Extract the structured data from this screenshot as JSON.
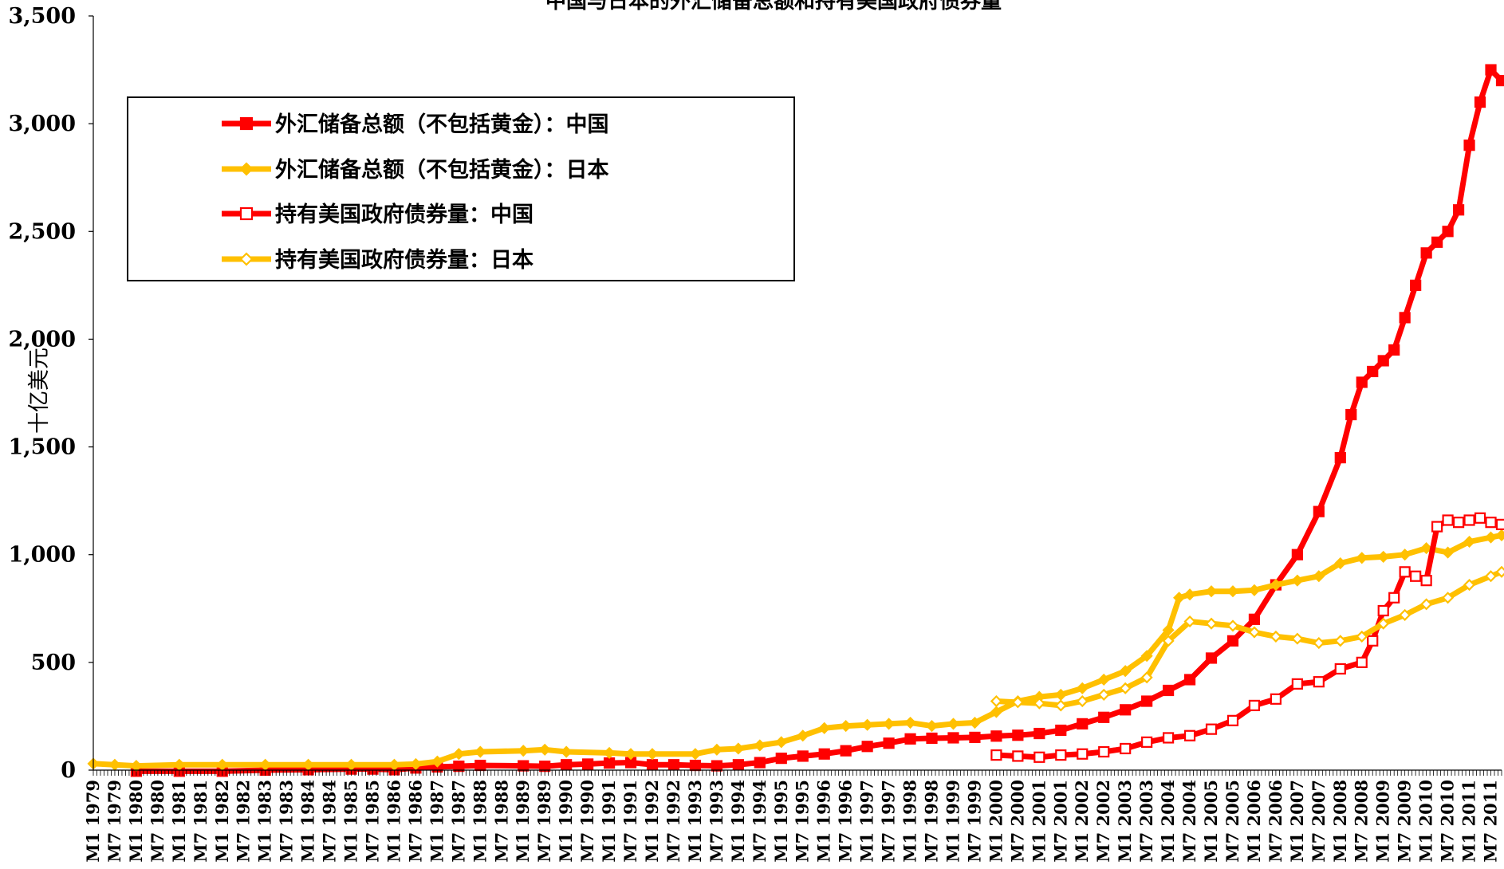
{
  "chart_data": {
    "type": "line",
    "title": "中国与日本的外汇储备总额和持有美国政府债券量",
    "xlabel": "",
    "ylabel": "十亿美元",
    "ylim": [
      0,
      3500
    ],
    "yticks": [
      "0",
      "500",
      "1,000",
      "1,500",
      "2,000",
      "2,500",
      "3,000",
      "3,500"
    ],
    "ytick_values": [
      0,
      500,
      1000,
      1500,
      2000,
      2500,
      3000,
      3500
    ],
    "x_tick_labels": [
      "M1 1979",
      "M7 1979",
      "M1 1980",
      "M7 1980",
      "M1 1981",
      "M7 1981",
      "M1 1982",
      "M7 1982",
      "M1 1983",
      "M7 1983",
      "M1 1984",
      "M7 1984",
      "M1 1985",
      "M7 1985",
      "M1 1986",
      "M7 1986",
      "M1 1987",
      "M7 1987",
      "M1 1988",
      "M7 1988",
      "M1 1989",
      "M7 1989",
      "M1 1990",
      "M7 1990",
      "M1 1991",
      "M7 1991",
      "M1 1992",
      "M7 1992",
      "M1 1993",
      "M7 1993",
      "M1 1994",
      "M7 1994",
      "M1 1995",
      "M7 1995",
      "M1 1996",
      "M7 1996",
      "M1 1997",
      "M7 1997",
      "M1 1998",
      "M7 1998",
      "M1 1999",
      "M7 1999",
      "M1 2000",
      "M7 2000",
      "M1 2001",
      "M7 2001",
      "M1 2002",
      "M7 2002",
      "M1 2003",
      "M7 2003",
      "M1 2004",
      "M7 2004",
      "M1 2005",
      "M7 2005",
      "M1 2006",
      "M7 2006",
      "M1 2007",
      "M7 2007",
      "M1 2008",
      "M7 2008",
      "M1 2009",
      "M7 2009",
      "M1 2010",
      "M7 2010",
      "M1 2011",
      "M7 2011"
    ],
    "x_range": [
      1979.0,
      2011.75
    ],
    "legend_position": "top-left",
    "grid": false,
    "series": [
      {
        "name": "外汇储备总额（不包括黄金）：中国",
        "color": "#ff0000",
        "marker": "filled-square",
        "x": [
          1980.0,
          1981.0,
          1982.0,
          1983.0,
          1984.0,
          1985.0,
          1985.5,
          1986.0,
          1986.5,
          1987.0,
          1987.5,
          1988.0,
          1989.0,
          1989.5,
          1990.0,
          1990.5,
          1991.0,
          1991.5,
          1992.0,
          1992.5,
          1993.0,
          1993.5,
          1994.0,
          1994.5,
          1995.0,
          1995.5,
          1996.0,
          1996.5,
          1997.0,
          1997.5,
          1998.0,
          1998.5,
          1999.0,
          1999.5,
          2000.0,
          2000.5,
          2001.0,
          2001.5,
          2002.0,
          2002.5,
          2003.0,
          2003.5,
          2004.0,
          2004.5,
          2005.0,
          2005.5,
          2006.0,
          2006.5,
          2007.0,
          2007.5,
          2008.0,
          2008.25,
          2008.5,
          2008.75,
          2009.0,
          2009.25,
          2009.5,
          2009.75,
          2010.0,
          2010.25,
          2010.5,
          2010.75,
          2011.0,
          2011.25,
          2011.5,
          2011.75
        ],
        "y": [
          -5,
          -5,
          -5,
          0,
          2,
          5,
          5,
          2,
          10,
          15,
          18,
          22,
          20,
          18,
          25,
          28,
          33,
          35,
          25,
          25,
          22,
          20,
          25,
          35,
          55,
          65,
          75,
          90,
          110,
          125,
          145,
          148,
          150,
          152,
          158,
          162,
          170,
          185,
          215,
          245,
          280,
          320,
          370,
          420,
          520,
          600,
          700,
          860,
          1000,
          1200,
          1450,
          1650,
          1800,
          1850,
          1900,
          1950,
          2100,
          2250,
          2400,
          2450,
          2500,
          2600,
          2900,
          3100,
          3250,
          3200
        ]
      },
      {
        "name": "外汇储备总额（不包括黄金）：日本",
        "color": "#ffc000",
        "marker": "filled-diamond",
        "x": [
          1979.0,
          1979.5,
          1980.0,
          1981.0,
          1982.0,
          1983.0,
          1984.0,
          1985.0,
          1986.0,
          1986.5,
          1987.0,
          1987.5,
          1988.0,
          1989.0,
          1989.5,
          1990.0,
          1991.0,
          1991.5,
          1992.0,
          1993.0,
          1993.5,
          1994.0,
          1994.5,
          1995.0,
          1995.5,
          1996.0,
          1996.5,
          1997.0,
          1997.5,
          1998.0,
          1998.5,
          1999.0,
          1999.5,
          2000.0,
          2000.5,
          2001.0,
          2001.5,
          2002.0,
          2002.5,
          2003.0,
          2003.5,
          2004.0,
          2004.25,
          2004.5,
          2005.0,
          2005.5,
          2006.0,
          2006.5,
          2007.0,
          2007.5,
          2008.0,
          2008.5,
          2009.0,
          2009.5,
          2010.0,
          2010.5,
          2011.0,
          2011.5,
          2011.75
        ],
        "y": [
          30,
          25,
          20,
          25,
          25,
          25,
          25,
          25,
          25,
          28,
          40,
          75,
          85,
          90,
          95,
          85,
          80,
          75,
          75,
          75,
          95,
          100,
          115,
          130,
          160,
          195,
          205,
          210,
          215,
          220,
          205,
          215,
          220,
          270,
          320,
          340,
          350,
          380,
          420,
          460,
          530,
          650,
          800,
          815,
          830,
          830,
          835,
          860,
          880,
          900,
          960,
          985,
          990,
          1000,
          1030,
          1010,
          1060,
          1080,
          1090
        ]
      },
      {
        "name": "持有美国政府债券量：中国",
        "color": "#ff0000",
        "marker": "hollow-square",
        "x": [
          2000.0,
          2000.5,
          2001.0,
          2001.5,
          2002.0,
          2002.5,
          2003.0,
          2003.5,
          2004.0,
          2004.5,
          2005.0,
          2005.5,
          2006.0,
          2006.5,
          2007.0,
          2007.5,
          2008.0,
          2008.5,
          2008.75,
          2009.0,
          2009.25,
          2009.5,
          2009.75,
          2010.0,
          2010.25,
          2010.5,
          2010.75,
          2011.0,
          2011.25,
          2011.5,
          2011.75
        ],
        "y": [
          70,
          65,
          60,
          70,
          75,
          85,
          100,
          130,
          150,
          160,
          190,
          230,
          300,
          330,
          400,
          410,
          470,
          500,
          600,
          740,
          800,
          920,
          900,
          880,
          1130,
          1160,
          1150,
          1160,
          1170,
          1150,
          1140
        ]
      },
      {
        "name": "持有美国政府债券量：日本",
        "color": "#ffc000",
        "marker": "hollow-diamond",
        "x": [
          2000.0,
          2000.5,
          2001.0,
          2001.5,
          2002.0,
          2002.5,
          2003.0,
          2003.5,
          2004.0,
          2004.5,
          2005.0,
          2005.5,
          2006.0,
          2006.5,
          2007.0,
          2007.5,
          2008.0,
          2008.5,
          2009.0,
          2009.5,
          2010.0,
          2010.5,
          2011.0,
          2011.5,
          2011.75
        ],
        "y": [
          320,
          315,
          310,
          300,
          320,
          350,
          380,
          430,
          600,
          690,
          680,
          670,
          640,
          620,
          610,
          590,
          600,
          620,
          680,
          720,
          770,
          800,
          860,
          900,
          920
        ]
      }
    ]
  }
}
